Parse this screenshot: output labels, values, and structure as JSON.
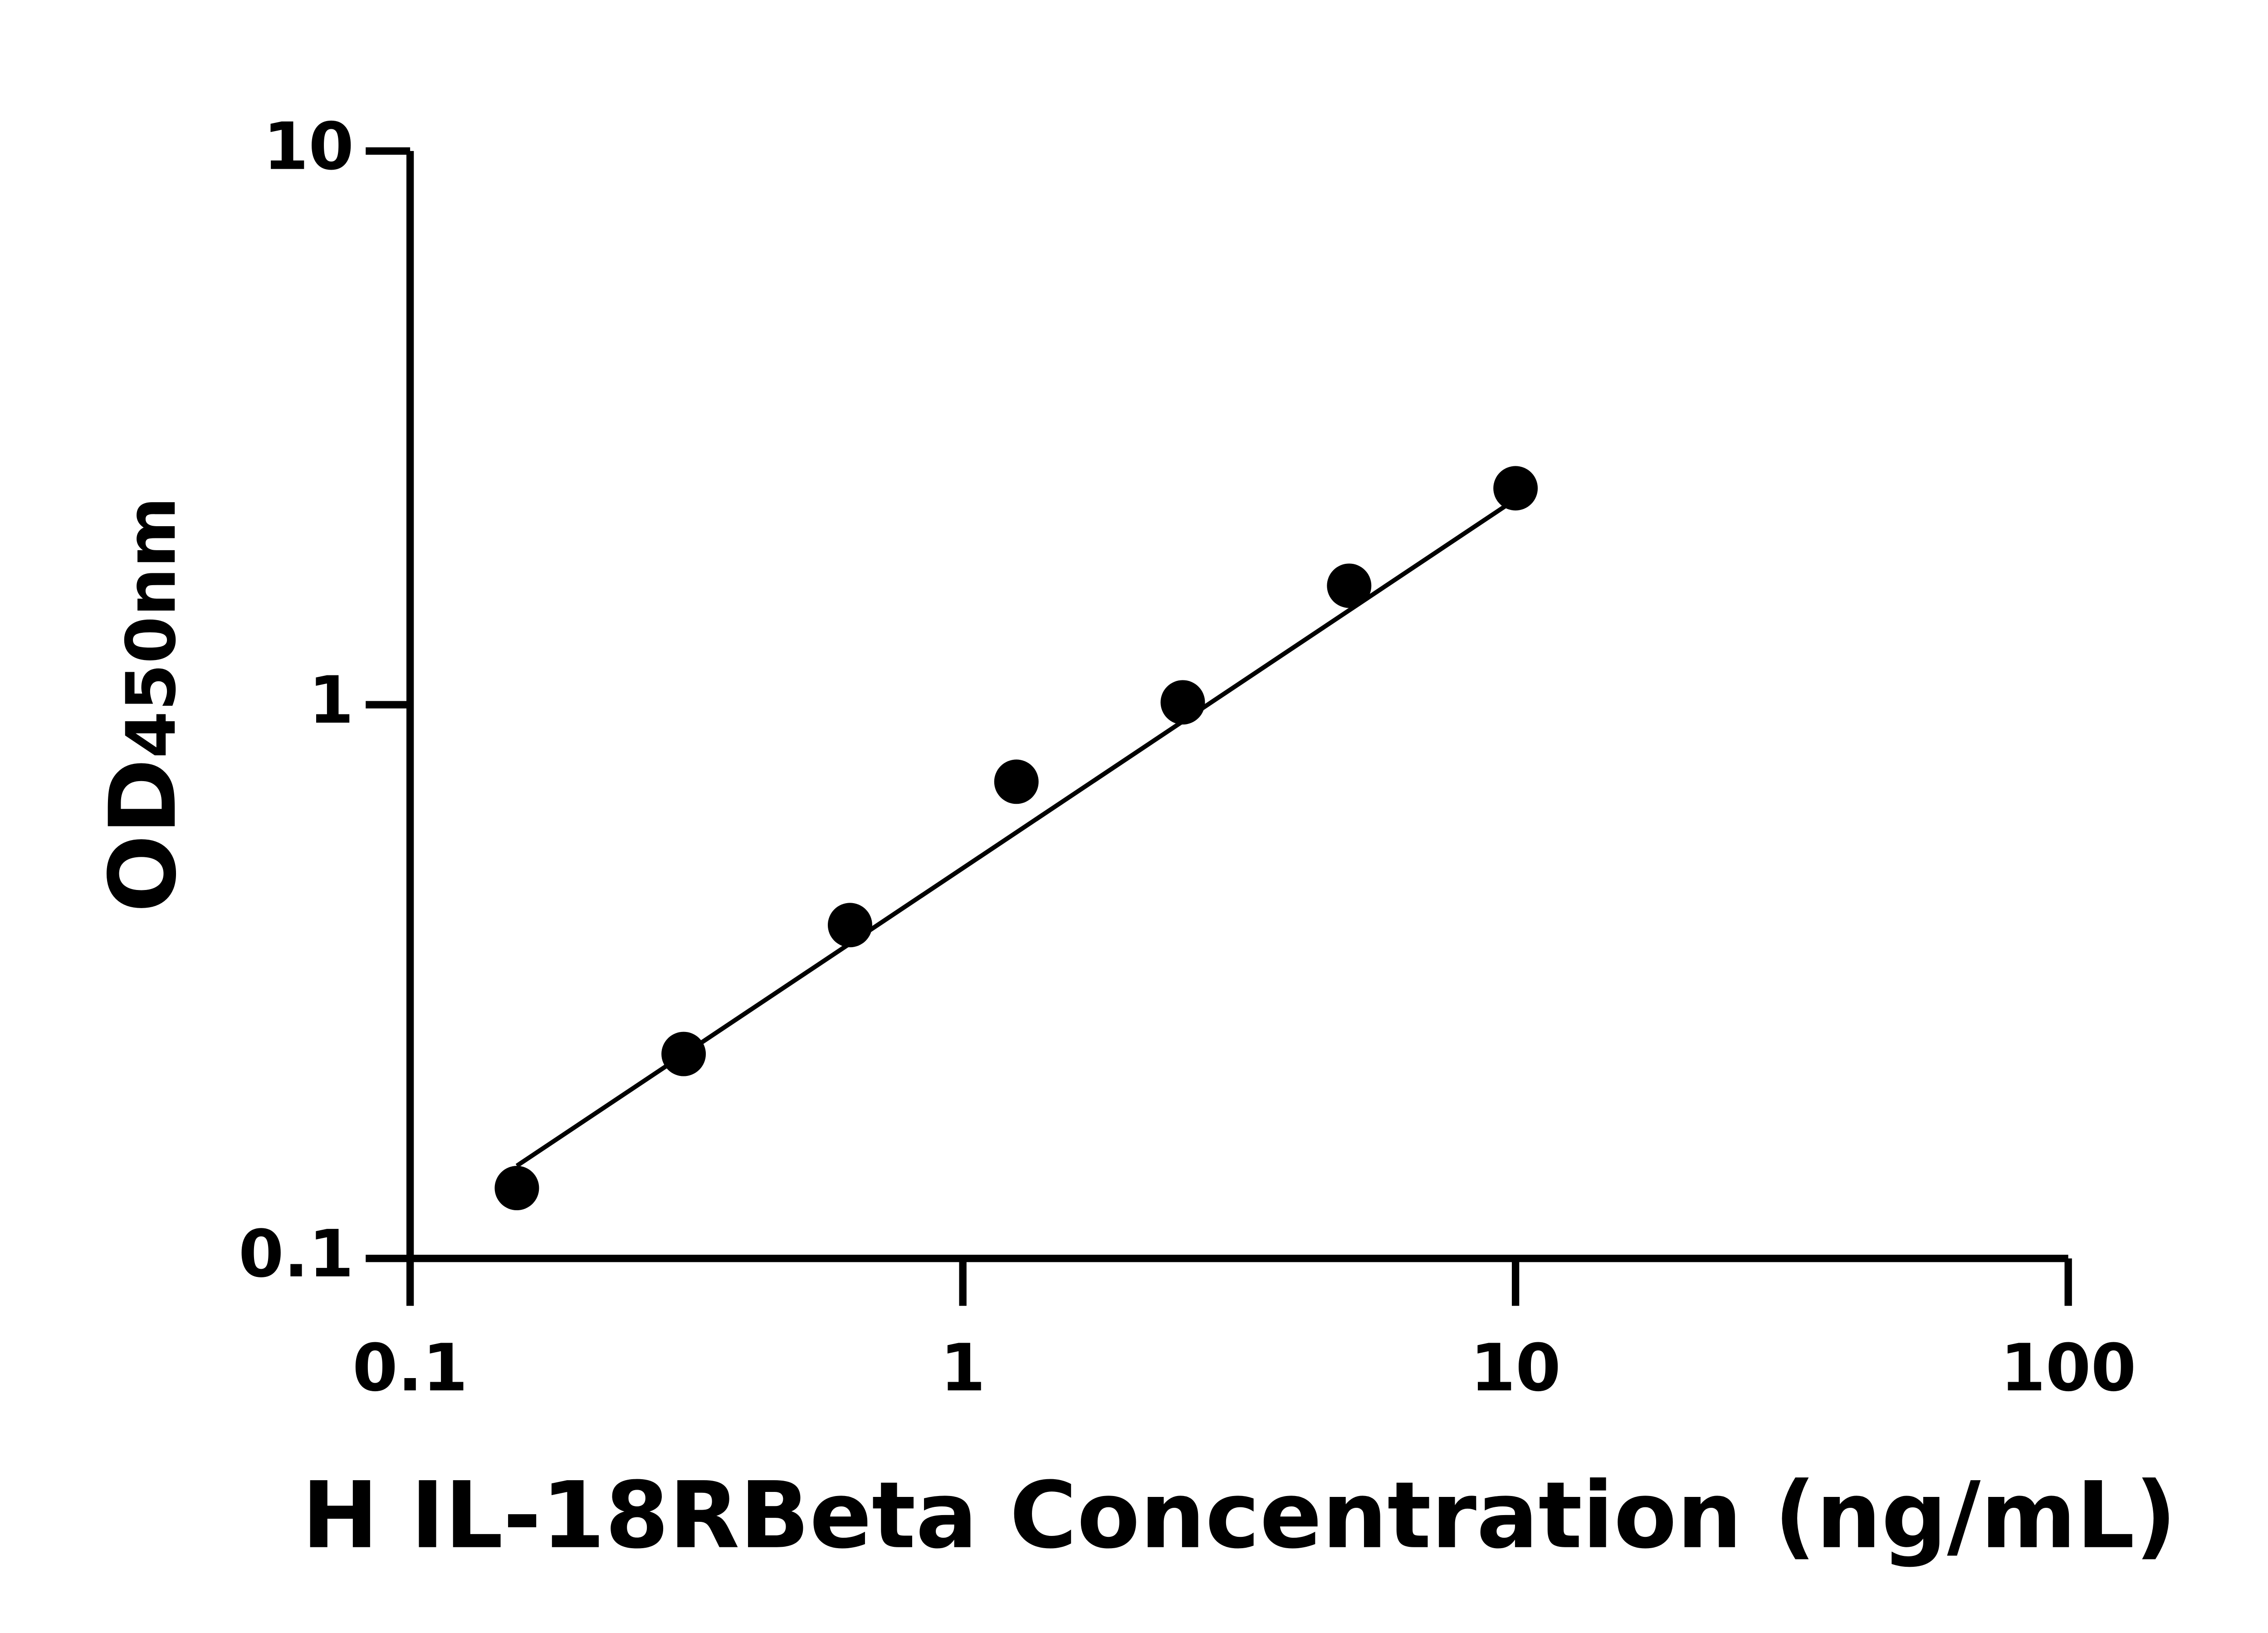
{
  "chart_data": {
    "type": "scatter",
    "log_x": true,
    "log_y": true,
    "xlabel": "H IL-18RBeta Concentration (ng/mL)",
    "ylabel": "OD",
    "ylabel_subscript": "450nm",
    "x": [
      0.156,
      0.3125,
      0.625,
      1.25,
      2.5,
      5,
      10
    ],
    "values": [
      0.134,
      0.234,
      0.4,
      0.726,
      1.01,
      1.64,
      2.46
    ],
    "color": "#000000",
    "fit_line": {
      "x": [
        0.156,
        10
      ],
      "values": [
        0.147,
        2.35
      ]
    },
    "xlim": [
      0.1,
      100
    ],
    "xticks": [
      0.1,
      1,
      10,
      100
    ],
    "ylim": [
      0.1,
      10
    ],
    "yticks": [
      0.1,
      1,
      10
    ]
  }
}
